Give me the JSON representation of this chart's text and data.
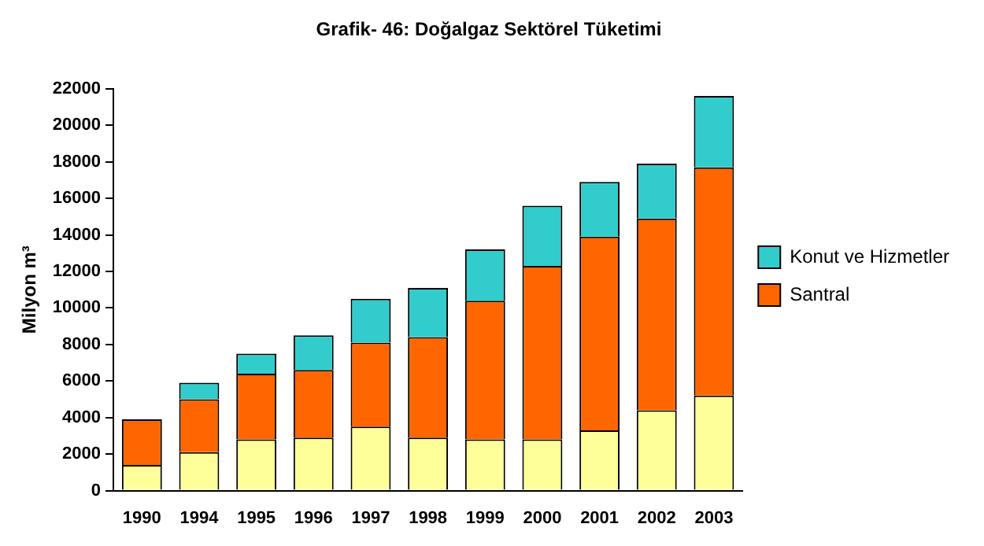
{
  "chart_data": {
    "type": "bar",
    "title": "Grafik- 46: Doğalgaz Sektörel Tüketimi",
    "ylabel": "Milyon m³",
    "stacked": true,
    "legend": "right",
    "grid": false,
    "categories": [
      "1990",
      "1994",
      "1995",
      "1996",
      "1997",
      "1998",
      "1999",
      "2000",
      "2001",
      "2002",
      "2003"
    ],
    "ylim": [
      0,
      22000
    ],
    "yticks": [
      0,
      2000,
      4000,
      6000,
      8000,
      10000,
      12000,
      14000,
      16000,
      18000,
      20000,
      22000
    ],
    "series": [
      {
        "color": "#ffff99",
        "values": [
          1400,
          2100,
          2800,
          2900,
          3500,
          2900,
          2800,
          2800,
          3300,
          4400,
          5200
        ]
      },
      {
        "name": "Santral",
        "color": "#ff6600",
        "values": [
          2500,
          2900,
          3600,
          3700,
          4600,
          5500,
          7600,
          9500,
          10600,
          10500,
          12500
        ]
      },
      {
        "name": "Konut ve Hizmetler",
        "color": "#33cccc",
        "values": [
          0,
          900,
          1100,
          1900,
          2400,
          2700,
          2800,
          3300,
          3000,
          3000,
          3900
        ]
      }
    ]
  }
}
